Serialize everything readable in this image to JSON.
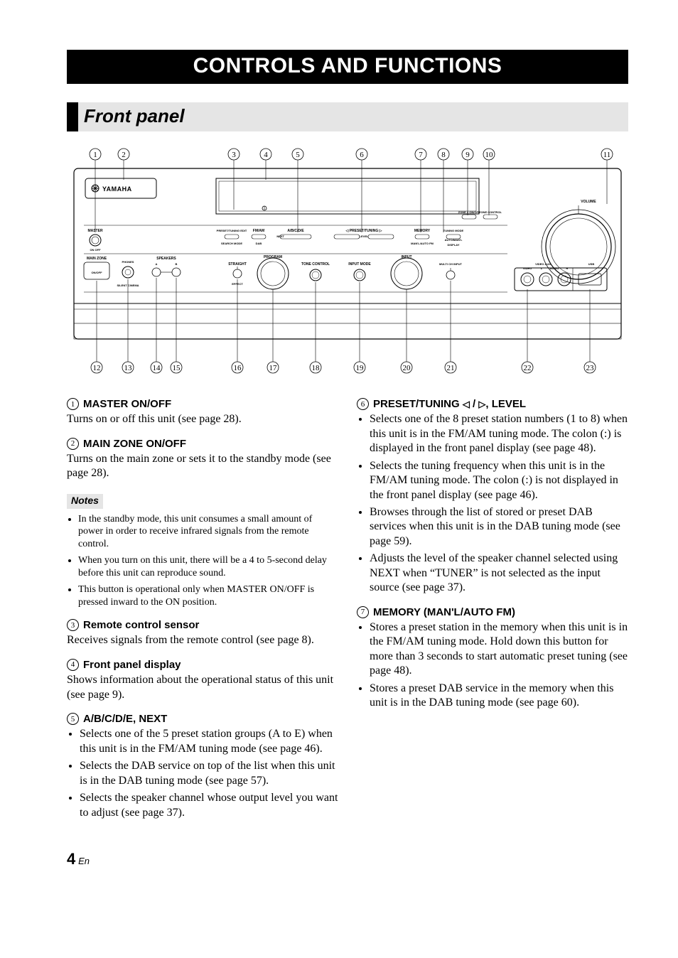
{
  "page": {
    "title": "CONTROLS AND FUNCTIONS",
    "section": "Front panel",
    "page_number_big": "4",
    "page_number_suffix": "En"
  },
  "callouts_top": [
    "1",
    "2",
    "3",
    "4",
    "5",
    "6",
    "7",
    "8",
    "9",
    "10",
    "11"
  ],
  "callouts_bottom": [
    "12",
    "13",
    "14",
    "15",
    "16",
    "17",
    "18",
    "19",
    "20",
    "21",
    "22",
    "23"
  ],
  "panel_labels": {
    "brand": "YAMAHA",
    "volume": "VOLUME",
    "zone2_onoff": "ZONE 2 ON/OFF",
    "zone_control": "ZONE CONTROL",
    "master": "MASTER",
    "on_off_marks": "ON    OFF",
    "main_zone": "MAIN ZONE",
    "onoff": "ON/OFF",
    "phones": "PHONES",
    "silent_cinema": "SILENT CINEMA",
    "speakers": "SPEAKERS",
    "spk_a": "A",
    "spk_b": "B",
    "preset_tuning_edit": "PRESET/TUNING EDIT",
    "search_mode": "SEARCH MODE",
    "fm_am": "FM/AM",
    "dab": "DAB",
    "abcde": "A/B/C/D/E",
    "next": "NEXT",
    "preset_tuning": "PRESET/TUNING",
    "level": "LEVEL",
    "memory": "MEMORY",
    "manl_auto": "MAN'L/AUTO FM",
    "tuning_mode": "TUNING MODE",
    "auto_man": "AUTO/MAN'L",
    "display": "DISPLAY",
    "straight": "STRAIGHT",
    "effect": "EFFECT",
    "program": "PROGRAM",
    "tone_control": "TONE CONTROL",
    "input_mode": "INPUT MODE",
    "input": "INPUT",
    "multi_ch_input": "MULTI CH INPUT",
    "video_aux": "VIDEO AUX",
    "usb": "USB",
    "video": "VIDEO",
    "l": "L",
    "audio": "AUDIO",
    "r": "R"
  },
  "left_col": {
    "i1": {
      "num": "1",
      "head": "MASTER ON/OFF",
      "body": "Turns on or off this unit (see page 28)."
    },
    "i2": {
      "num": "2",
      "head": "MAIN ZONE ON/OFF",
      "body": "Turns on the main zone or sets it to the standby mode (see page 28)."
    },
    "notes_label": "Notes",
    "notes": [
      "In the standby mode, this unit consumes a small amount of power in order to receive infrared signals from the remote control.",
      "When you turn on this unit, there will be a 4 to 5-second delay before this unit can reproduce sound.",
      "This button is operational only when MASTER ON/OFF is pressed inward to the ON position."
    ],
    "i3": {
      "num": "3",
      "head": "Remote control sensor",
      "body": "Receives signals from the remote control (see page 8)."
    },
    "i4": {
      "num": "4",
      "head": "Front panel display",
      "body": "Shows information about the operational status of this unit (see page 9)."
    },
    "i5": {
      "num": "5",
      "head": "A/B/C/D/E, NEXT",
      "bullets": [
        "Selects one of the 5 preset station groups (A to E) when this unit is in the FM/AM tuning mode (see page 46).",
        "Selects the DAB service on top of the list when this unit is in the DAB tuning mode (see page 57).",
        "Selects the speaker channel whose output level you want to adjust (see page 37)."
      ]
    }
  },
  "right_col": {
    "i6": {
      "num": "6",
      "head_prefix": "PRESET/TUNING ",
      "head_suffix": ", LEVEL",
      "bullets": [
        "Selects one of the 8 preset station numbers (1 to 8) when this unit is in the FM/AM tuning mode. The colon (:) is displayed in the front panel display (see page 48).",
        "Selects the tuning frequency when this unit is in the FM/AM tuning mode. The colon (:) is not displayed in the front panel display (see page 46).",
        "Browses through the list of stored or preset DAB services when this unit is in the DAB tuning mode (see page 59).",
        "Adjusts the level of the speaker channel selected using NEXT when “TUNER” is not selected as the input source (see page 37)."
      ]
    },
    "i7": {
      "num": "7",
      "head": "MEMORY (MAN'L/AUTO FM)",
      "bullets": [
        "Stores a preset station in the memory when this unit is in the FM/AM tuning mode. Hold down this button for more than 3 seconds to start automatic preset tuning (see page 48).",
        "Stores a preset DAB service in the memory when this unit is in the DAB tuning mode (see page 60)."
      ]
    }
  }
}
